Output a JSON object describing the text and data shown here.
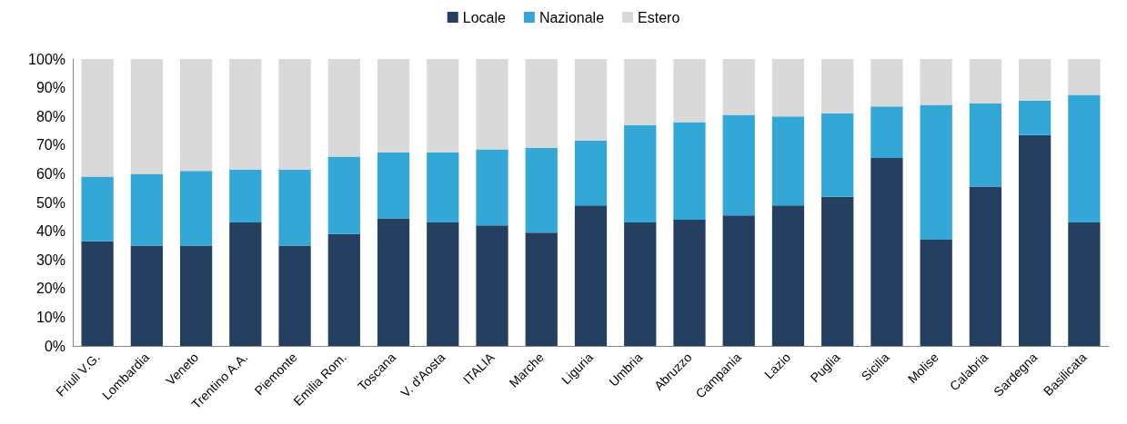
{
  "chart_data": {
    "type": "bar",
    "stacked": true,
    "legend": "top",
    "grid": false,
    "categories": [
      "Friuli V.G.",
      "Lombardia",
      "Veneto",
      "Trentino A.A.",
      "Piemonte",
      "Emilia Rom.",
      "Toscana",
      "V. d'Aosta",
      "ITALIA",
      "Marche",
      "Liguria",
      "Umbria",
      "Abruzzo",
      "Campania",
      "Lazio",
      "Puglia",
      "Sicilia",
      "Molise",
      "Calabria",
      "Sardegna",
      "Basilicata"
    ],
    "ylim": [
      0,
      100
    ],
    "yticks": [
      {
        "value": 0,
        "label": "0%"
      },
      {
        "value": 10,
        "label": "10%"
      },
      {
        "value": 20,
        "label": "20%"
      },
      {
        "value": 30,
        "label": "30%"
      },
      {
        "value": 40,
        "label": "40%"
      },
      {
        "value": 50,
        "label": "50%"
      },
      {
        "value": 60,
        "label": "60%"
      },
      {
        "value": 70,
        "label": "70%"
      },
      {
        "value": 80,
        "label": "80%"
      },
      {
        "value": 90,
        "label": "90%"
      },
      {
        "value": 100,
        "label": "100%"
      }
    ],
    "series": [
      {
        "name": "Locale",
        "color": "#243f5f",
        "values": [
          36.5,
          35,
          35,
          43,
          35,
          39,
          44.5,
          43,
          42,
          39.5,
          49,
          43,
          44,
          45.5,
          49,
          52,
          65.5,
          37,
          55.5,
          73.5,
          43
        ]
      },
      {
        "name": "Nazionale",
        "color": "#33a8d6",
        "values": [
          22.5,
          25,
          26,
          18.5,
          26.5,
          27,
          23,
          24.5,
          26.5,
          29.5,
          22.5,
          34,
          34,
          35,
          31,
          29,
          18,
          47,
          29,
          12,
          44.5
        ]
      },
      {
        "name": "Estero",
        "color": "#d9d9d9",
        "values": [
          41,
          40,
          39,
          38.5,
          38.5,
          34,
          32.5,
          32.5,
          31.5,
          31,
          28.5,
          23,
          22,
          19.5,
          20,
          19,
          16.5,
          16,
          15.5,
          14.5,
          12.5
        ]
      }
    ]
  }
}
